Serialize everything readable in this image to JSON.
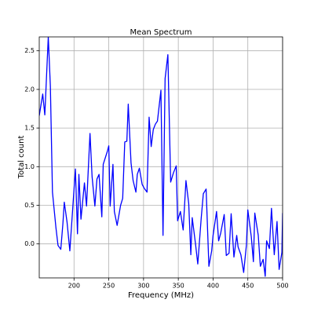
{
  "chart_data": {
    "type": "line",
    "title": "Mean Spectrum",
    "x_label": "Frequency (MHz)",
    "y_label": "Total count",
    "x": [
      150,
      155,
      158,
      163,
      166,
      169,
      174,
      177,
      181,
      184,
      186,
      190,
      194,
      198,
      202,
      205,
      207,
      210,
      215,
      218,
      223,
      226,
      230,
      233,
      236,
      240,
      242,
      248,
      250,
      252,
      256,
      258,
      262,
      267,
      270,
      273,
      276,
      278,
      282,
      285,
      289,
      291,
      294,
      298,
      301,
      305,
      308,
      311,
      314,
      317,
      320,
      325,
      328,
      331,
      335,
      339,
      343,
      347,
      349,
      353,
      357,
      361,
      365,
      368,
      370,
      375,
      378,
      383,
      386,
      390,
      394,
      398,
      400,
      405,
      408,
      411,
      416,
      419,
      423,
      426,
      430,
      434,
      436,
      440,
      444,
      448,
      450,
      455,
      458,
      460,
      465,
      468,
      472,
      475,
      477,
      481,
      484,
      488,
      492,
      495,
      499,
      500
    ],
    "series": [
      {
        "name": "Mean Spectrum",
        "color": "#0000ff",
        "values": [
          1.66,
          1.94,
          1.67,
          2.68,
          2.04,
          0.67,
          0.21,
          -0.02,
          -0.07,
          0.26,
          0.54,
          0.28,
          -0.09,
          0.44,
          0.97,
          0.13,
          0.9,
          0.32,
          0.79,
          0.49,
          1.43,
          0.87,
          0.49,
          0.84,
          0.9,
          0.35,
          1.03,
          1.2,
          1.27,
          0.49,
          1.03,
          0.42,
          0.24,
          0.5,
          0.59,
          1.32,
          1.33,
          1.81,
          1.05,
          0.82,
          0.67,
          0.9,
          0.98,
          0.77,
          0.72,
          0.67,
          1.64,
          1.26,
          1.48,
          1.55,
          1.59,
          1.99,
          0.11,
          2.14,
          2.45,
          0.8,
          0.92,
          1.01,
          0.3,
          0.42,
          0.18,
          0.82,
          0.52,
          -0.14,
          0.34,
          -0.02,
          -0.26,
          0.34,
          0.65,
          0.71,
          -0.29,
          -0.09,
          0.11,
          0.42,
          0.04,
          0.14,
          0.38,
          -0.15,
          -0.12,
          0.39,
          -0.17,
          0.11,
          -0.04,
          -0.14,
          -0.37,
          -0.01,
          0.44,
          0.09,
          -0.23,
          0.4,
          0.11,
          -0.29,
          -0.2,
          -0.42,
          0.04,
          -0.06,
          0.46,
          -0.14,
          0.29,
          -0.33,
          -0.11,
          0.4
        ]
      }
    ],
    "xlim": [
      150,
      500
    ],
    "ylim": [
      -0.44,
      2.68
    ],
    "xticks": [
      200,
      250,
      300,
      350,
      400,
      450,
      500
    ],
    "yticks": [
      {
        "value": 0,
        "label": "0.0"
      },
      {
        "value": 0.5,
        "label": "0.5"
      },
      {
        "value": 1,
        "label": "1.0"
      },
      {
        "value": 1.5,
        "label": "1.5"
      },
      {
        "value": 2,
        "label": "2.0"
      },
      {
        "value": 2.5,
        "label": "2.5"
      }
    ],
    "grid": true
  }
}
